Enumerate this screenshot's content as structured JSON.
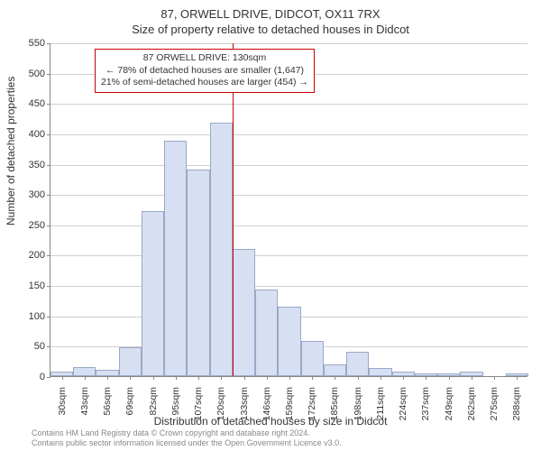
{
  "title_main": "87, ORWELL DRIVE, DIDCOT, OX11 7RX",
  "title_sub": "Size of property relative to detached houses in Didcot",
  "ylabel": "Number of detached properties",
  "xlabel": "Distribution of detached houses by size in Didcot",
  "chart": {
    "type": "histogram",
    "ylim": [
      0,
      550
    ],
    "ytick_step": 50,
    "yticks": [
      0,
      50,
      100,
      150,
      200,
      250,
      300,
      350,
      400,
      450,
      500,
      550
    ],
    "xticks": [
      "30sqm",
      "43sqm",
      "56sqm",
      "69sqm",
      "82sqm",
      "95sqm",
      "107sqm",
      "120sqm",
      "133sqm",
      "146sqm",
      "159sqm",
      "172sqm",
      "185sqm",
      "198sqm",
      "211sqm",
      "224sqm",
      "237sqm",
      "249sqm",
      "262sqm",
      "275sqm",
      "288sqm"
    ],
    "values": [
      8,
      15,
      10,
      48,
      272,
      388,
      340,
      418,
      210,
      142,
      115,
      58,
      20,
      40,
      13,
      8,
      4,
      5,
      8,
      0,
      4
    ],
    "bar_fill": "#d7e0f2",
    "bar_stroke": "#9aa8c8",
    "grid_color": "#d0d0d0",
    "background": "#ffffff",
    "axis_color": "#888888",
    "reference_line": {
      "position_index": 8,
      "fraction_within": 0.0,
      "color": "#cc0000"
    }
  },
  "annotation": {
    "line1": "87 ORWELL DRIVE: 130sqm",
    "line2": "← 78% of detached houses are smaller (1,647)",
    "line3": "21% of semi-detached houses are larger (454) →",
    "border_color": "#cc0000"
  },
  "footer_line1": "Contains HM Land Registry data © Crown copyright and database right 2024.",
  "footer_line2": "Contains public sector information licensed under the Open Government Licence v3.0."
}
